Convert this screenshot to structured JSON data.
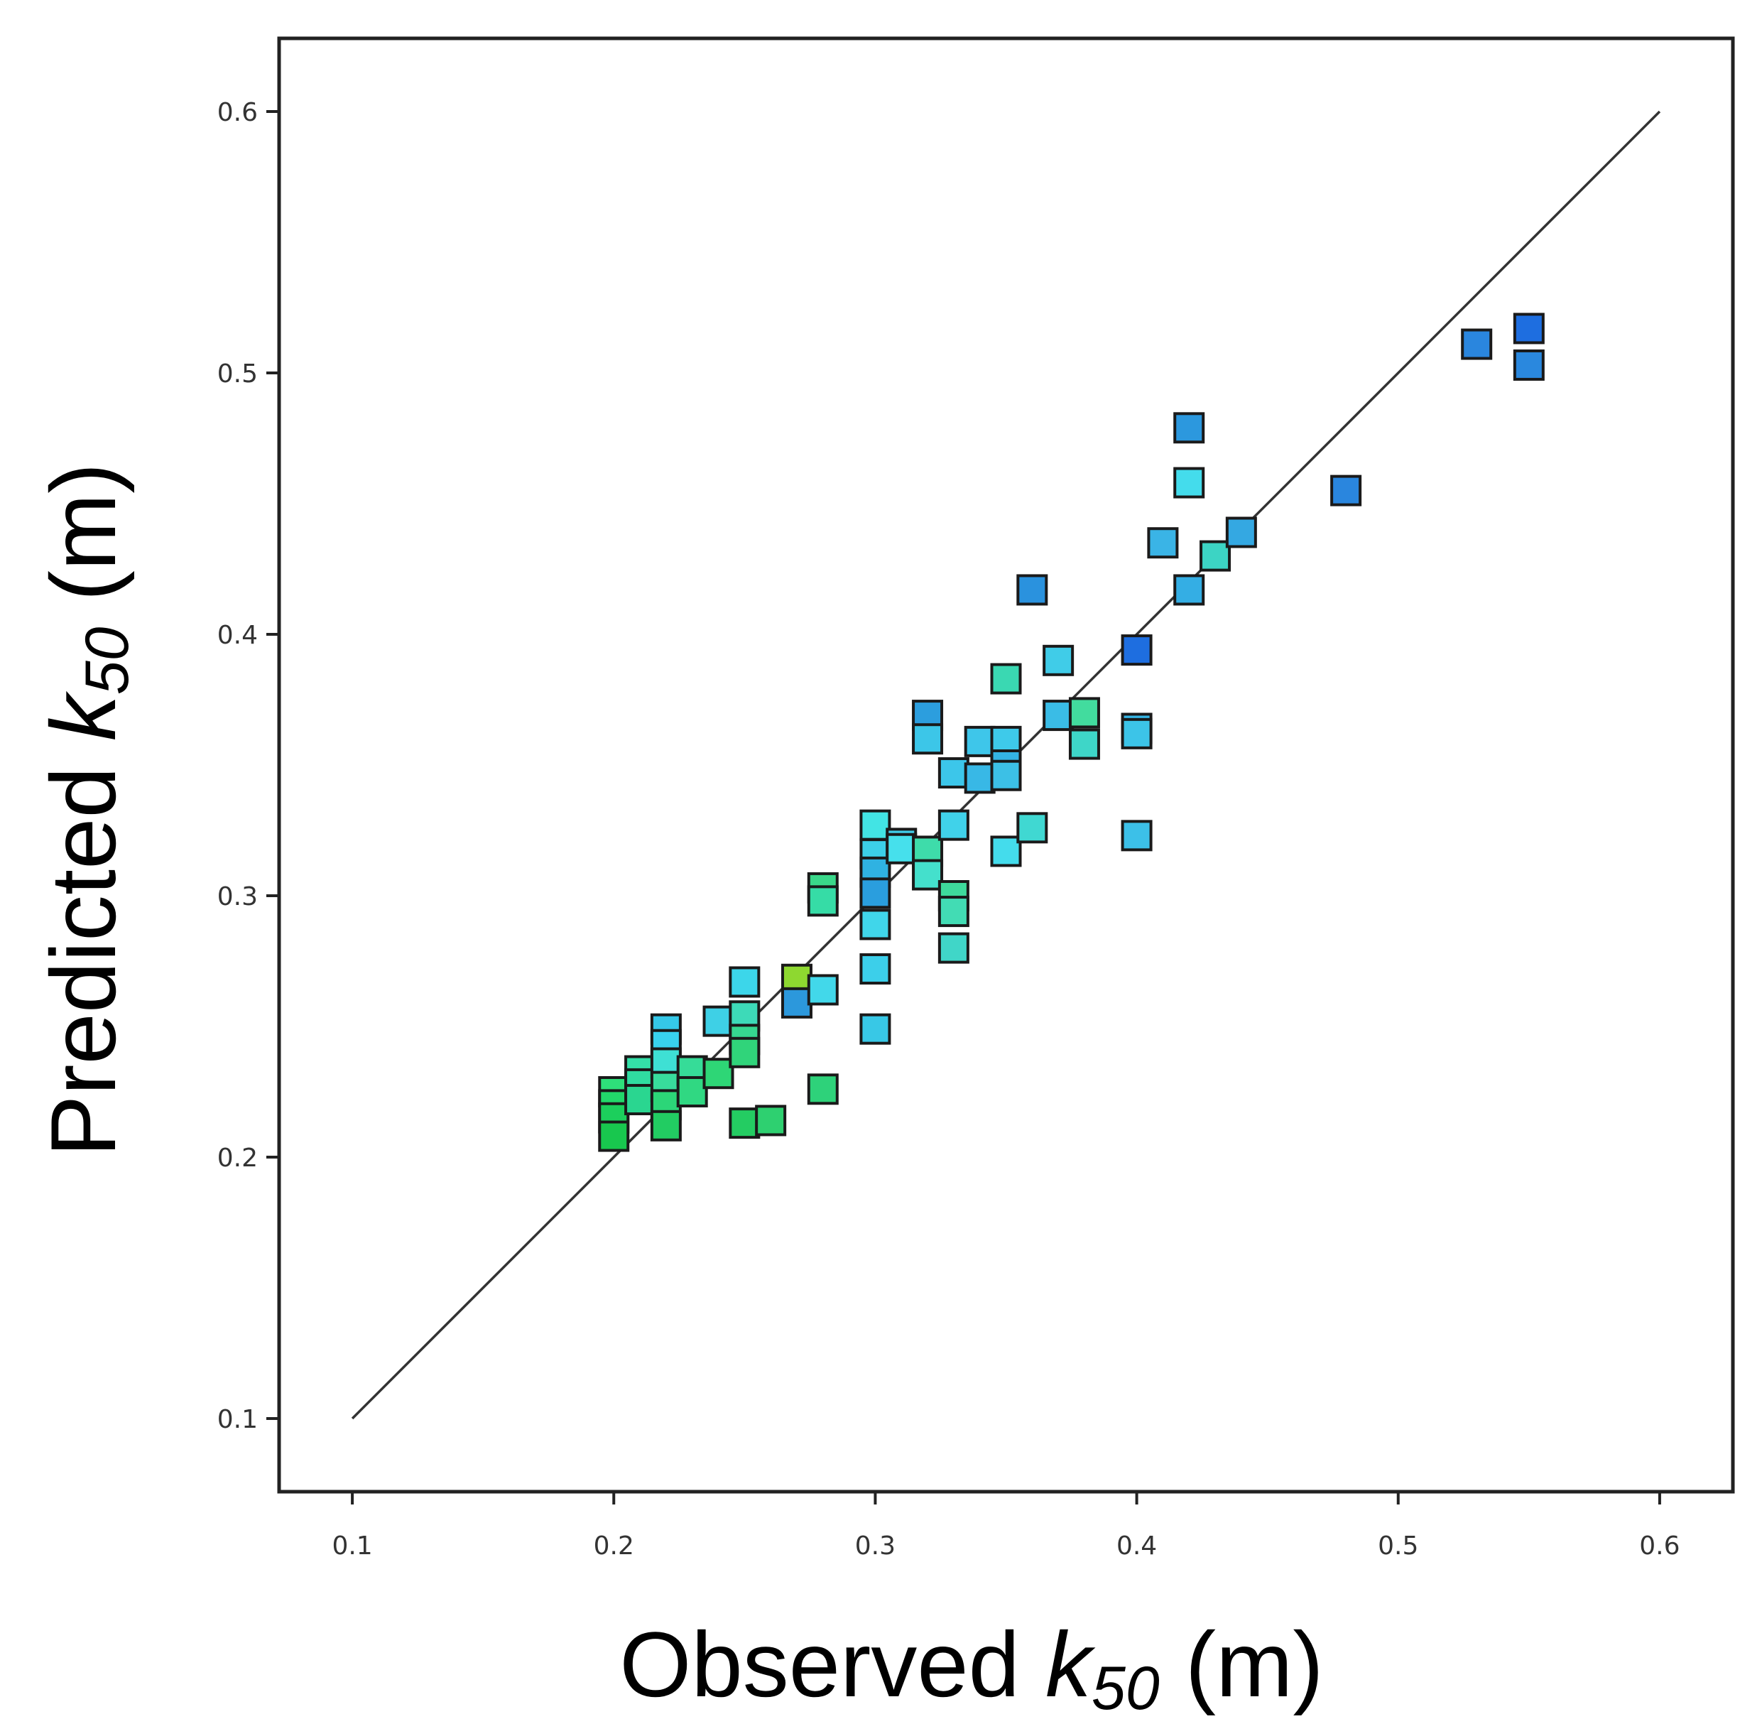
{
  "chart_data": {
    "type": "scatter",
    "title": "",
    "xlabel": {
      "prefix": "Observed ",
      "symbol": "k",
      "subscript": "50",
      "suffix": " (m)"
    },
    "ylabel": {
      "prefix": "Predicted ",
      "symbol": "k",
      "subscript": "50",
      "suffix": " (m)"
    },
    "xlim": [
      0.072,
      0.628
    ],
    "ylim": [
      0.072,
      0.628
    ],
    "xticks": [
      "0.1",
      "0.2",
      "0.3",
      "0.4",
      "0.5",
      "0.6"
    ],
    "yticks": [
      "0.1",
      "0.2",
      "0.3",
      "0.4",
      "0.5",
      "0.6"
    ],
    "reference_line": {
      "from": [
        0.1,
        0.1
      ],
      "to": [
        0.6,
        0.6
      ],
      "color": "#333333"
    },
    "grid": false,
    "legend": "none",
    "points": [
      {
        "x": 0.2,
        "y": 0.225,
        "color": "#2ee07a"
      },
      {
        "x": 0.2,
        "y": 0.22,
        "color": "#22d86a"
      },
      {
        "x": 0.2,
        "y": 0.215,
        "color": "#1ccf5c"
      },
      {
        "x": 0.2,
        "y": 0.208,
        "color": "#18c74e"
      },
      {
        "x": 0.21,
        "y": 0.233,
        "color": "#34e0a8"
      },
      {
        "x": 0.21,
        "y": 0.228,
        "color": "#30dca0"
      },
      {
        "x": 0.21,
        "y": 0.222,
        "color": "#2ad690"
      },
      {
        "x": 0.22,
        "y": 0.249,
        "color": "#35c8e8"
      },
      {
        "x": 0.22,
        "y": 0.243,
        "color": "#38d2ee"
      },
      {
        "x": 0.22,
        "y": 0.236,
        "color": "#3ee0d4"
      },
      {
        "x": 0.22,
        "y": 0.227,
        "color": "#38dc9c"
      },
      {
        "x": 0.22,
        "y": 0.22,
        "color": "#2cd678"
      },
      {
        "x": 0.22,
        "y": 0.212,
        "color": "#22cc62"
      },
      {
        "x": 0.23,
        "y": 0.233,
        "color": "#36dc98"
      },
      {
        "x": 0.23,
        "y": 0.225,
        "color": "#30d882"
      },
      {
        "x": 0.24,
        "y": 0.252,
        "color": "#3ed0e6"
      },
      {
        "x": 0.24,
        "y": 0.232,
        "color": "#2ed676"
      },
      {
        "x": 0.25,
        "y": 0.267,
        "color": "#3cd6ea"
      },
      {
        "x": 0.25,
        "y": 0.254,
        "color": "#3ddab8"
      },
      {
        "x": 0.25,
        "y": 0.245,
        "color": "#36d890"
      },
      {
        "x": 0.25,
        "y": 0.24,
        "color": "#30d47a"
      },
      {
        "x": 0.25,
        "y": 0.213,
        "color": "#24cc62"
      },
      {
        "x": 0.26,
        "y": 0.214,
        "color": "#2ed070"
      },
      {
        "x": 0.27,
        "y": 0.268,
        "color": "#8ed830"
      },
      {
        "x": 0.27,
        "y": 0.259,
        "color": "#2c98dc"
      },
      {
        "x": 0.28,
        "y": 0.303,
        "color": "#3ad88a"
      },
      {
        "x": 0.28,
        "y": 0.298,
        "color": "#36dca6"
      },
      {
        "x": 0.28,
        "y": 0.264,
        "color": "#42d8ea"
      },
      {
        "x": 0.28,
        "y": 0.226,
        "color": "#2ed27a"
      },
      {
        "x": 0.3,
        "y": 0.327,
        "color": "#42e4e4"
      },
      {
        "x": 0.3,
        "y": 0.316,
        "color": "#3ccfe8"
      },
      {
        "x": 0.3,
        "y": 0.309,
        "color": "#2fb2e2"
      },
      {
        "x": 0.3,
        "y": 0.301,
        "color": "#2a9ede"
      },
      {
        "x": 0.3,
        "y": 0.289,
        "color": "#40d6ea"
      },
      {
        "x": 0.3,
        "y": 0.272,
        "color": "#3ccfea"
      },
      {
        "x": 0.3,
        "y": 0.249,
        "color": "#38c8e6"
      },
      {
        "x": 0.31,
        "y": 0.32,
        "color": "#40cce8"
      },
      {
        "x": 0.31,
        "y": 0.318,
        "color": "#46e0ec"
      },
      {
        "x": 0.32,
        "y": 0.369,
        "color": "#2c9ede"
      },
      {
        "x": 0.32,
        "y": 0.36,
        "color": "#3cc6e8"
      },
      {
        "x": 0.32,
        "y": 0.317,
        "color": "#3edcaa"
      },
      {
        "x": 0.32,
        "y": 0.308,
        "color": "#44e0cc"
      },
      {
        "x": 0.33,
        "y": 0.347,
        "color": "#3cc6ea"
      },
      {
        "x": 0.33,
        "y": 0.327,
        "color": "#40d2ea"
      },
      {
        "x": 0.33,
        "y": 0.3,
        "color": "#3eda9c"
      },
      {
        "x": 0.33,
        "y": 0.294,
        "color": "#42dcb4"
      },
      {
        "x": 0.33,
        "y": 0.28,
        "color": "#40d6c8"
      },
      {
        "x": 0.34,
        "y": 0.359,
        "color": "#3ec6ea"
      },
      {
        "x": 0.34,
        "y": 0.345,
        "color": "#38b8e6"
      },
      {
        "x": 0.35,
        "y": 0.383,
        "color": "#3ad8b2"
      },
      {
        "x": 0.35,
        "y": 0.359,
        "color": "#3ecaea"
      },
      {
        "x": 0.35,
        "y": 0.35,
        "color": "#34b4e4"
      },
      {
        "x": 0.35,
        "y": 0.346,
        "color": "#3cc0e6"
      },
      {
        "x": 0.35,
        "y": 0.317,
        "color": "#44dcec"
      },
      {
        "x": 0.36,
        "y": 0.417,
        "color": "#2a92de"
      },
      {
        "x": 0.36,
        "y": 0.326,
        "color": "#40d8d2"
      },
      {
        "x": 0.37,
        "y": 0.39,
        "color": "#40cce8"
      },
      {
        "x": 0.37,
        "y": 0.369,
        "color": "#3abce6"
      },
      {
        "x": 0.38,
        "y": 0.37,
        "color": "#42dc9e"
      },
      {
        "x": 0.38,
        "y": 0.358,
        "color": "#3ed6c8"
      },
      {
        "x": 0.4,
        "y": 0.394,
        "color": "#1e6ee0"
      },
      {
        "x": 0.4,
        "y": 0.364,
        "color": "#36b6e6"
      },
      {
        "x": 0.4,
        "y": 0.362,
        "color": "#3cc4e8"
      },
      {
        "x": 0.4,
        "y": 0.323,
        "color": "#3cc0e8"
      },
      {
        "x": 0.41,
        "y": 0.435,
        "color": "#3ab4e6"
      },
      {
        "x": 0.42,
        "y": 0.479,
        "color": "#2c98de"
      },
      {
        "x": 0.42,
        "y": 0.458,
        "color": "#44dcec"
      },
      {
        "x": 0.42,
        "y": 0.417,
        "color": "#34aee4"
      },
      {
        "x": 0.43,
        "y": 0.43,
        "color": "#3cd4c4"
      },
      {
        "x": 0.44,
        "y": 0.439,
        "color": "#34a8e2"
      },
      {
        "x": 0.48,
        "y": 0.455,
        "color": "#2a86de"
      },
      {
        "x": 0.53,
        "y": 0.511,
        "color": "#2a86de"
      },
      {
        "x": 0.55,
        "y": 0.517,
        "color": "#1e6ee0"
      },
      {
        "x": 0.55,
        "y": 0.503,
        "color": "#2a88de"
      }
    ]
  }
}
